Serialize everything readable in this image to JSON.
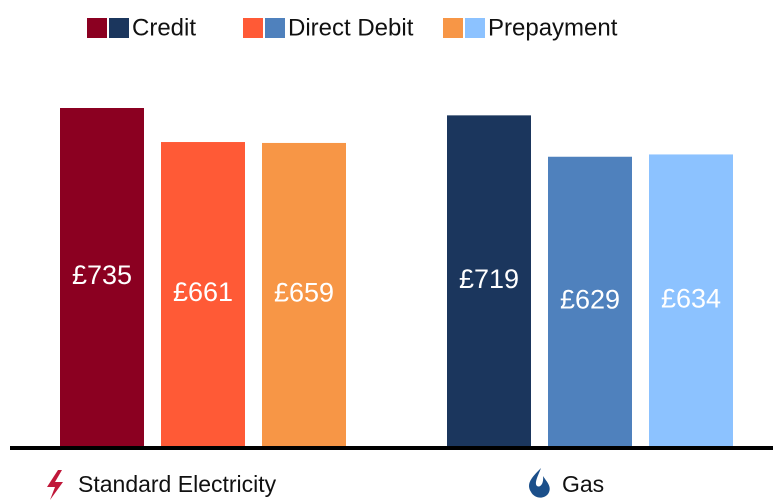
{
  "chart_data": {
    "type": "bar",
    "categories": [
      "Standard Electricity",
      "Gas"
    ],
    "series": [
      {
        "name": "Credit",
        "colors": [
          "#8b0021",
          "#1b365d"
        ],
        "values": [
          735,
          719
        ],
        "value_labels": [
          "£735",
          "£719"
        ]
      },
      {
        "name": "Direct Debit",
        "colors": [
          "#ff5a36",
          "#4f81bd"
        ],
        "values": [
          661,
          629
        ],
        "value_labels": [
          "£661",
          "£629"
        ]
      },
      {
        "name": "Prepayment",
        "colors": [
          "#f79646",
          "#8cc2ff"
        ],
        "values": [
          659,
          634
        ],
        "value_labels": [
          "£659",
          "£634"
        ]
      }
    ]
  }
}
